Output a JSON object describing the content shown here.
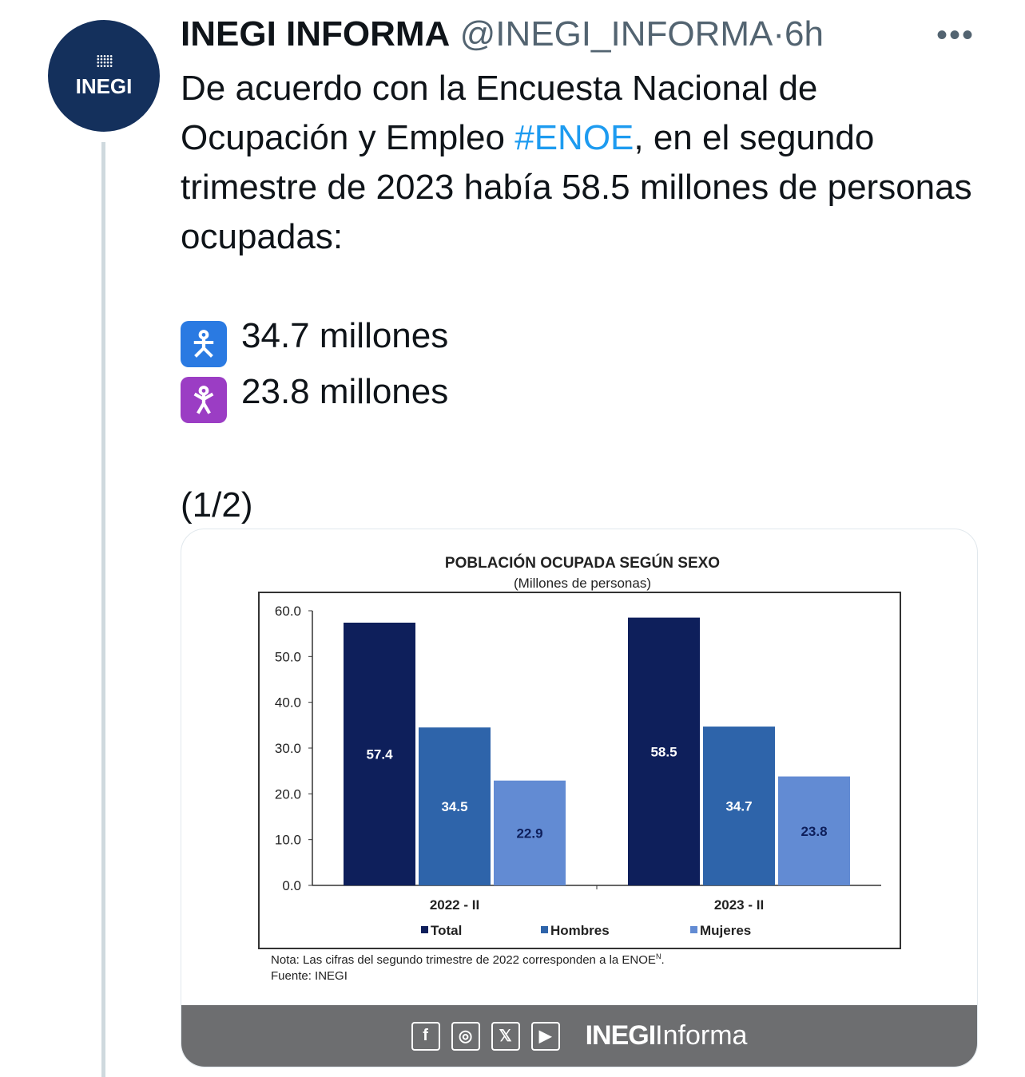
{
  "tweet": {
    "avatar_text": "INEGI",
    "name": "INEGI INFORMA",
    "handle": "@INEGI_INFORMA",
    "separator": "·",
    "time": "6h",
    "more": "•••",
    "text_1": "De acuerdo con la Encuesta Nacional de Ocupación y Empleo ",
    "hashtag": "#ENOE",
    "text_2": ", en el segundo trimestre de 2023 había 58.5 millones de personas ocupadas:",
    "men_icon": "man-symbol-icon",
    "men_line": "34.7 millones",
    "women_icon": "woman-symbol-icon",
    "women_line": "23.8 millones",
    "thread_count": "(1/2)"
  },
  "card": {
    "note": "Nota: Las cifras del segundo trimestre de 2022 corresponden a la ENOE",
    "note_sup": "N",
    "source": "Fuente: INEGI",
    "footer_brand_bold": "INEGI",
    "footer_brand": "Informa",
    "footer_icons": [
      "f",
      "◎",
      "𝕏",
      "▶"
    ]
  },
  "chart_data": {
    "type": "bar",
    "title": "POBLACIÓN OCUPADA SEGÚN SEXO",
    "subtitle": "(Millones de personas)",
    "categories": [
      "2022 - II",
      "2023 - II"
    ],
    "series": [
      {
        "name": "Total",
        "values": [
          57.4,
          58.5
        ],
        "color": "#0e1f5b",
        "label_color": "#ffffff"
      },
      {
        "name": "Hombres",
        "values": [
          34.5,
          34.7
        ],
        "color": "#2e64aa",
        "label_color": "#ffffff"
      },
      {
        "name": "Mujeres",
        "values": [
          22.9,
          23.8
        ],
        "color": "#628bd3",
        "label_color": "#0e1f5b"
      }
    ],
    "value_labels": [
      [
        "57.4",
        "58.5"
      ],
      [
        "34.5",
        "34.7"
      ],
      [
        "22.9",
        "23.8"
      ]
    ],
    "yticks": [
      "0.0",
      "10.0",
      "20.0",
      "30.0",
      "40.0",
      "50.0",
      "60.0"
    ],
    "ylim": [
      0,
      60
    ],
    "legend": "bottom"
  }
}
